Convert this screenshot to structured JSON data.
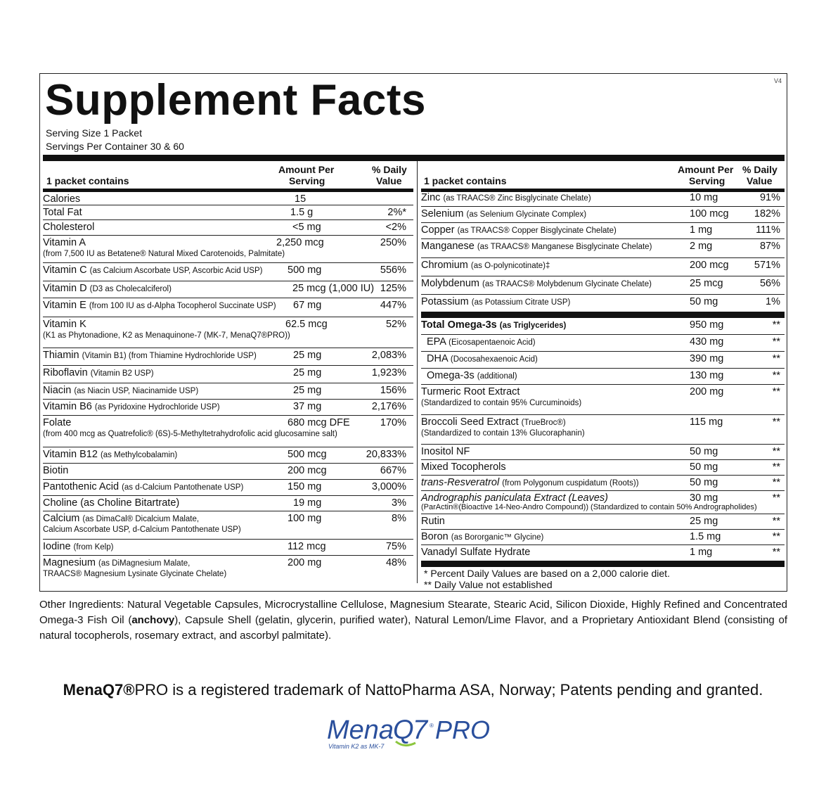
{
  "title": "Supplement Facts",
  "version": "V4",
  "serving_size": "Serving Size 1 Packet",
  "servings_per_container": "Servings Per Container 30 & 60",
  "headers": {
    "contains": "1 packet contains",
    "amount_line1": "Amount Per",
    "amount_line2": "Serving",
    "dv_line1": "% Daily",
    "dv_line2": "Value"
  },
  "left_rows": [
    {
      "name": "Calories",
      "desc": "",
      "sub": "",
      "amount": "15",
      "dv": ""
    },
    {
      "name": "Total Fat",
      "desc": "",
      "sub": "",
      "amount": "1.5 g",
      "dv": "2%*"
    },
    {
      "name": "Cholesterol",
      "desc": "",
      "sub": "",
      "amount": "<5 mg",
      "dv": "<2%"
    },
    {
      "name": "Vitamin A",
      "desc": "",
      "sub": "(from 7,500 IU as Betatene® Natural Mixed Carotenoids, Palmitate)",
      "amount": "2,250  mcg",
      "dv": "250%"
    },
    {
      "name": "Vitamin C",
      "desc": "(as Calcium Ascorbate USP, Ascorbic Acid USP)",
      "sub": "",
      "amount": "500 mg",
      "dv": "556%"
    },
    {
      "name": "Vitamin D",
      "desc": "(D3 as Cholecalciferol)",
      "sub": "",
      "amount": "25 mcg (1,000 IU)",
      "dv": "125%"
    },
    {
      "name": "Vitamin E",
      "desc": "(from 100 IU as d-Alpha Tocopherol Succinate USP)",
      "sub": "",
      "amount": "67 mg",
      "dv": "447%"
    },
    {
      "name": "Vitamin K",
      "desc": "",
      "sub": "(K1 as Phytonadione, K2 as Menaquinone-7 (MK-7, MenaQ7®PRO))",
      "amount": "62.5 mcg",
      "dv": "52%"
    },
    {
      "name": "Thiamin",
      "desc": "(Vitamin B1) (from Thiamine Hydrochloride USP)",
      "sub": "",
      "amount": "25 mg",
      "dv": "2,083%"
    },
    {
      "name": "Riboflavin",
      "desc": "(Vitamin B2 USP)",
      "sub": "",
      "amount": "25 mg",
      "dv": "1,923%"
    },
    {
      "name": "Niacin",
      "desc": "(as Niacin USP, Niacinamide USP)",
      "sub": "",
      "amount": "25 mg",
      "dv": "156%"
    },
    {
      "name": "Vitamin B6",
      "desc": "(as Pyridoxine Hydrochloride USP)",
      "sub": "",
      "amount": "37 mg",
      "dv": "2,176%"
    },
    {
      "name": "Folate",
      "desc": "",
      "sub": "(from 400 mcg as Quatrefolic® (6S)-5-Methyltetrahydrofolic acid glucosamine salt)",
      "amount": "680 mcg DFE",
      "dv": "170%"
    },
    {
      "name": "Vitamin B12",
      "desc": "(as Methylcobalamin)",
      "sub": "",
      "amount": "500 mcg",
      "dv": "20,833%"
    },
    {
      "name": "Biotin",
      "desc": "",
      "sub": "",
      "amount": "200 mcg",
      "dv": "667%"
    },
    {
      "name": "Pantothenic Acid",
      "desc": "(as d-Calcium Pantothenate USP)",
      "sub": "",
      "amount": "150 mg",
      "dv": "3,000%"
    },
    {
      "name": "Choline (as Choline Bitartrate)",
      "desc": "",
      "sub": "",
      "amount": "19 mg",
      "dv": "3%"
    },
    {
      "name": "Calcium",
      "desc": "(as DimaCal® Dicalcium Malate,",
      "sub": "Calcium Ascorbate USP, d-Calcium Pantothenate USP)",
      "amount": "100 mg",
      "dv": "8%"
    },
    {
      "name": "Iodine",
      "desc": "(from Kelp)",
      "sub": "",
      "amount": "112 mcg",
      "dv": "75%"
    },
    {
      "name": "Magnesium",
      "desc": "(as DiMagnesium Malate,",
      "sub": "TRAACS® Magnesium Lysinate Glycinate Chelate)",
      "amount": "200 mg",
      "dv": "48%"
    }
  ],
  "right_rows": [
    {
      "name": "Zinc",
      "desc": "(as TRAACS® Zinc Bisglycinate Chelate)",
      "sub": "",
      "amount": "10 mg",
      "dv": "91%"
    },
    {
      "name": "Selenium",
      "desc": "(as Selenium Glycinate Complex)",
      "sub": "",
      "amount": "100 mcg",
      "dv": "182%"
    },
    {
      "name": "Copper",
      "desc": "(as TRAACS® Copper Bisglycinate Chelate)",
      "sub": "",
      "amount": "1 mg",
      "dv": "111%"
    },
    {
      "name": "Manganese",
      "desc": "(as TRAACS® Manganese Bisglycinate Chelate)",
      "sub": "",
      "amount": "2 mg",
      "dv": "87%"
    },
    {
      "name": "Chromium",
      "desc": "(as O-polynicotinate)‡",
      "sub": "",
      "amount": "200 mcg",
      "dv": "571%"
    },
    {
      "name": "Molybdenum",
      "desc": "(as TRAACS® Molybdenum Glycinate Chelate)",
      "sub": "",
      "amount": "25 mcg",
      "dv": "56%"
    },
    {
      "name": "Potassium",
      "desc": "(as Potassium Citrate USP)",
      "sub": "",
      "amount": "50 mg",
      "dv": "1%"
    },
    {
      "name": "Total Omega-3s",
      "desc": "(as Triglycerides)",
      "sub": "",
      "amount": "950 mg",
      "dv": "**"
    },
    {
      "name": "EPA",
      "desc": "(Eicosapentaenoic Acid)",
      "sub": "",
      "amount": "430 mg",
      "dv": "**"
    },
    {
      "name": "DHA",
      "desc": "(Docosahexaenoic Acid)",
      "sub": "",
      "amount": "390 mg",
      "dv": "**"
    },
    {
      "name": "Omega-3s",
      "desc": "(additional)",
      "sub": "",
      "amount": "130 mg",
      "dv": "**"
    },
    {
      "name": "Turmeric Root Extract",
      "desc": "",
      "sub": "(Standardized to contain 95% Curcuminoids)",
      "amount": "200 mg",
      "dv": "**"
    },
    {
      "name": "Broccoli Seed Extract",
      "desc": "(TrueBroc®)",
      "sub": "(Standardized to contain 13% Glucoraphanin)",
      "amount": "115 mg",
      "dv": "**"
    },
    {
      "name": "Inositol NF",
      "desc": "",
      "sub": "",
      "amount": "50 mg",
      "dv": "**"
    },
    {
      "name": "Mixed Tocopherols",
      "desc": "",
      "sub": "",
      "amount": "50 mg",
      "dv": "**"
    },
    {
      "name": "trans-Resveratrol",
      "desc": "(from Polygonum cuspidatum (Roots))",
      "sub": "",
      "amount": "50 mg",
      "dv": "**"
    },
    {
      "name": "Andrographis paniculata Extract (Leaves)",
      "desc": "",
      "sub": "(ParActin®(Bioactive 14-Neo-Andro Compound)) (Standardized to contain 50% Andrographolides)",
      "amount": "30 mg",
      "dv": "**"
    },
    {
      "name": "Rutin",
      "desc": "",
      "sub": "",
      "amount": "25 mg",
      "dv": "**"
    },
    {
      "name": "Boron",
      "desc": "(as Bororganic™ Glycine)",
      "sub": "",
      "amount": "1.5 mg",
      "dv": "**"
    },
    {
      "name": "Vanadyl Sulfate Hydrate",
      "desc": "",
      "sub": "",
      "amount": "1 mg",
      "dv": "**"
    }
  ],
  "footnotes": {
    "one": "*  Percent Daily Values are based on a 2,000 calorie diet.",
    "two": "**  Daily Value not established"
  },
  "other_ingredients_pre": "Other Ingredients: Natural Vegetable Capsules, Microcrystalline Cellulose, Magnesium Stearate, Stearic Acid, Silicon Dioxide, Highly Refined and Concentrated Omega-3 Fish Oil (",
  "other_ingredients_bold": "anchovy",
  "other_ingredients_post": "), Capsule Shell (gelatin, glycerin, purified water), Natural Lemon/Lime Flavor, and a Proprietary Antioxidant Blend (consisting of natural tocopherols, rosemary extract, and ascorbyl palmitate).",
  "trademark_bold": "MenaQ7®",
  "trademark_rest": "PRO is a registered trademark of NattoPharma ASA, Norway; Patents pending and granted.",
  "logo": {
    "text": "MenaQ7 PRO",
    "tagline": "Vitamin K2 as MK-7",
    "color": "#2a4f9c",
    "accent": "#8cc63f"
  }
}
